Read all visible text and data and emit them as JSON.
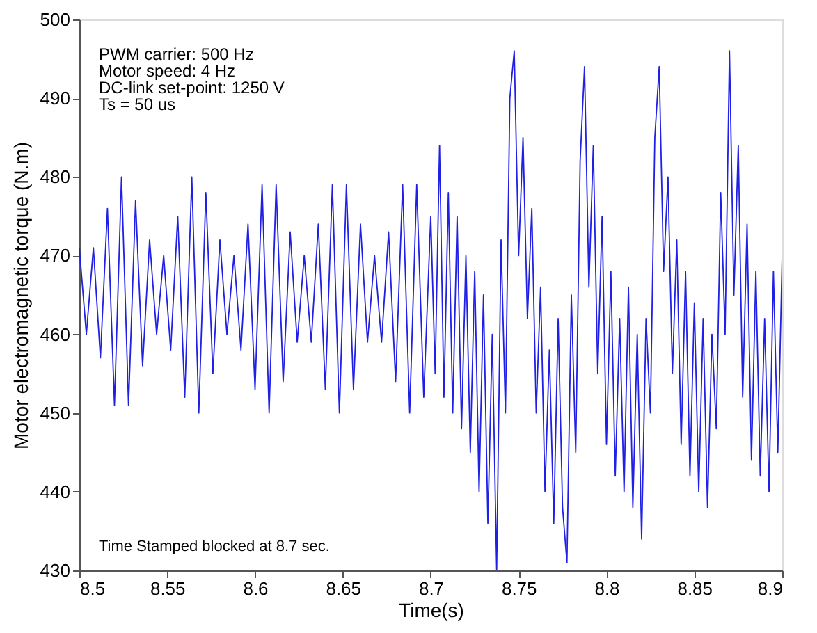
{
  "chart_data": {
    "type": "line",
    "xlabel": "Time(s)",
    "ylabel": "Motor electromagnetic torque (N.m)",
    "annotations": [
      "PWM carrier: 500 Hz",
      "Motor speed: 4 Hz",
      "DC-link set-point: 1250 V",
      "Ts = 50 us",
      "Time Stamped blocked at 8.7 sec."
    ],
    "xlim": [
      8.5,
      8.9
    ],
    "xticks": [
      8.5,
      8.55,
      8.6,
      8.65,
      8.7,
      8.75,
      8.8,
      8.85,
      8.9
    ],
    "ylim": [
      430,
      500
    ],
    "yticks": [
      430,
      440,
      450,
      460,
      470,
      480,
      490,
      500
    ],
    "grid": false,
    "marker": "none",
    "line_style": "solid",
    "series": [
      {
        "color": "#1f1fe6",
        "x": [
          8.5,
          8.504,
          8.508,
          8.512,
          8.516,
          8.52,
          8.524,
          8.528,
          8.532,
          8.536,
          8.54,
          8.544,
          8.548,
          8.552,
          8.556,
          8.56,
          8.564,
          8.568,
          8.572,
          8.576,
          8.58,
          8.584,
          8.588,
          8.592,
          8.596,
          8.6,
          8.604,
          8.608,
          8.612,
          8.616,
          8.62,
          8.624,
          8.628,
          8.632,
          8.636,
          8.64,
          8.644,
          8.648,
          8.652,
          8.656,
          8.66,
          8.664,
          8.668,
          8.672,
          8.676,
          8.68,
          8.684,
          8.688,
          8.692,
          8.696,
          8.7,
          8.7025,
          8.705,
          8.7075,
          8.71,
          8.7125,
          8.715,
          8.7175,
          8.72,
          8.7225,
          8.725,
          8.7275,
          8.73,
          8.7325,
          8.735,
          8.7375,
          8.74,
          8.7425,
          8.745,
          8.7475,
          8.75,
          8.7525,
          8.755,
          8.7575,
          8.76,
          8.7625,
          8.765,
          8.7675,
          8.77,
          8.7725,
          8.775,
          8.7775,
          8.78,
          8.7825,
          8.785,
          8.7875,
          8.79,
          8.7925,
          8.795,
          8.7975,
          8.8,
          8.8025,
          8.805,
          8.8075,
          8.81,
          8.8125,
          8.815,
          8.8175,
          8.82,
          8.8225,
          8.825,
          8.8275,
          8.83,
          8.8325,
          8.835,
          8.8375,
          8.84,
          8.8425,
          8.845,
          8.8475,
          8.85,
          8.8525,
          8.855,
          8.8575,
          8.86,
          8.8625,
          8.865,
          8.8675,
          8.87,
          8.8725,
          8.875,
          8.8775,
          8.88,
          8.8825,
          8.885,
          8.8875,
          8.89,
          8.8925,
          8.895,
          8.8975,
          8.9
        ],
        "values": [
          471,
          460,
          471,
          457,
          476,
          451,
          480,
          451,
          477,
          456,
          472,
          460,
          470,
          458,
          475,
          452,
          480,
          450,
          478,
          455,
          472,
          460,
          470,
          458,
          474,
          453,
          479,
          450,
          479,
          454,
          473,
          459,
          470,
          459,
          474,
          453,
          479,
          450,
          479,
          453,
          474,
          459,
          470,
          459,
          473,
          454,
          479,
          450,
          479,
          452,
          475,
          455,
          484,
          452,
          478,
          450,
          475,
          448,
          470,
          445,
          468,
          440,
          465,
          436,
          460,
          430,
          472,
          450,
          490,
          496,
          470,
          485,
          462,
          476,
          450,
          466,
          440,
          458,
          436,
          462,
          438,
          431,
          465,
          445,
          482,
          494,
          466,
          484,
          455,
          475,
          446,
          468,
          442,
          462,
          440,
          466,
          438,
          460,
          434,
          462,
          450,
          485,
          494,
          468,
          480,
          455,
          472,
          446,
          468,
          442,
          464,
          440,
          462,
          438,
          460,
          448,
          478,
          460,
          496,
          465,
          484,
          452,
          474,
          444,
          468,
          442,
          462,
          440,
          468,
          445,
          470
        ]
      }
    ]
  }
}
